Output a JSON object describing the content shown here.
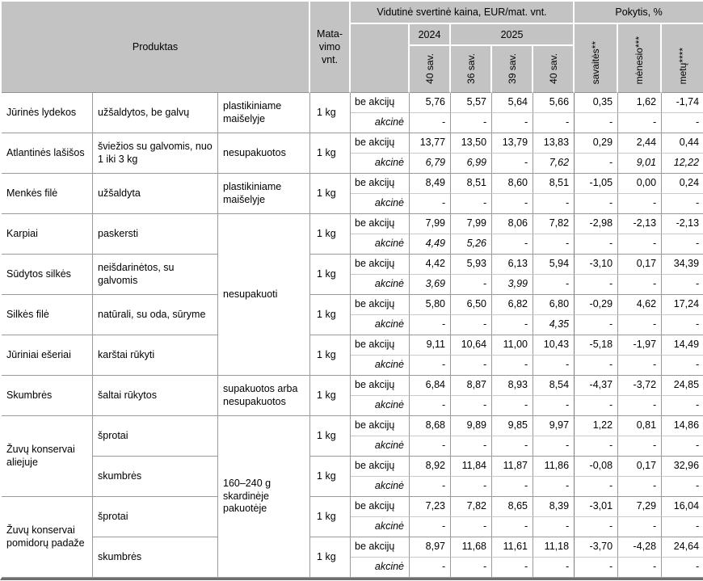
{
  "header": {
    "produktas": "Produktas",
    "matavimo": "Mata-\nvimo\nvnt.",
    "kaina": "Vidutinė svertinė kaina, EUR/mat. vnt.",
    "pokytis": "Pokytis, %",
    "year_2024": "2024",
    "year_2025": "2025",
    "weeks": [
      "40 sav.",
      "36 sav.",
      "39 sav.",
      "40 sav."
    ],
    "pokytis_labels": [
      "savaitės**",
      "mėnesio***",
      "metų****"
    ]
  },
  "row_labels": {
    "regular": "be akcijų",
    "promo": "akcinė"
  },
  "colors": {
    "header_bg": "#c3c3c3",
    "body_bg": "#ffffff",
    "grid_border": "#9a9a9a",
    "light_border": "#c9c9c9",
    "bottom_bar": "#6e6e6e"
  },
  "groups": [
    {
      "name": "Jūrinės lydekos",
      "name_groups": 1,
      "desc": "užšaldytos, be galvų",
      "pack": "plastikiniame maišelyje",
      "pack_groups": 1,
      "unit": "1 kg",
      "be": [
        "5,76",
        "5,57",
        "5,64",
        "5,66",
        "0,35",
        "1,62",
        "-1,74"
      ],
      "akc": [
        "-",
        "-",
        "-",
        "-",
        "-",
        "-",
        "-"
      ]
    },
    {
      "name": "Atlantinės lašišos",
      "name_groups": 1,
      "desc": "šviežios su galvomis, nuo 1 iki 3 kg",
      "pack": "nesupakuotos",
      "pack_groups": 1,
      "unit": "1 kg",
      "be": [
        "13,77",
        "13,50",
        "13,79",
        "13,83",
        "0,29",
        "2,44",
        "0,44"
      ],
      "akc": [
        "6,79",
        "6,99",
        "-",
        "7,62",
        "-",
        "9,01",
        "12,22"
      ]
    },
    {
      "name": "Menkės filė",
      "name_groups": 1,
      "desc": "užšaldyta",
      "pack": "plastikiniame maišelyje",
      "pack_groups": 1,
      "unit": "1 kg",
      "be": [
        "8,49",
        "8,51",
        "8,60",
        "8,51",
        "-1,05",
        "0,00",
        "0,24"
      ],
      "akc": [
        "-",
        "-",
        "-",
        "-",
        "-",
        "-",
        "-"
      ]
    },
    {
      "name": "Karpiai",
      "name_groups": 1,
      "desc": "paskersti",
      "pack": "nesupakuoti",
      "pack_groups": 4,
      "unit": "1 kg",
      "be": [
        "7,99",
        "7,99",
        "8,06",
        "7,82",
        "-2,98",
        "-2,13",
        "-2,13"
      ],
      "akc": [
        "4,49",
        "5,26",
        "-",
        "-",
        "-",
        "-",
        "-"
      ]
    },
    {
      "name": "Sūdytos silkės",
      "name_groups": 1,
      "desc": "neišdarinėtos, su galvomis",
      "pack": null,
      "pack_groups": 0,
      "unit": "1 kg",
      "be": [
        "4,42",
        "5,93",
        "6,13",
        "5,94",
        "-3,10",
        "0,17",
        "34,39"
      ],
      "akc": [
        "3,69",
        "-",
        "3,99",
        "-",
        "-",
        "-",
        "-"
      ]
    },
    {
      "name": "Silkės filė",
      "name_groups": 1,
      "desc": "natūrali, su oda, sūryme",
      "pack": null,
      "pack_groups": 0,
      "unit": "1 kg",
      "be": [
        "5,80",
        "6,50",
        "6,82",
        "6,80",
        "-0,29",
        "4,62",
        "17,24"
      ],
      "akc": [
        "-",
        "-",
        "-",
        "4,35",
        "-",
        "-",
        "-"
      ]
    },
    {
      "name": "Jūriniai ešeriai",
      "name_groups": 1,
      "desc": "karštai rūkyti",
      "pack": null,
      "pack_groups": 0,
      "unit": "1 kg",
      "be": [
        "9,11",
        "10,64",
        "11,00",
        "10,43",
        "-5,18",
        "-1,97",
        "14,49"
      ],
      "akc": [
        "-",
        "-",
        "-",
        "-",
        "-",
        "-",
        "-"
      ]
    },
    {
      "name": "Skumbrės",
      "name_groups": 1,
      "desc": "šaltai rūkytos",
      "pack": "supakuotos arba nesupakuotos",
      "pack_groups": 1,
      "unit": "1 kg",
      "be": [
        "6,84",
        "8,87",
        "8,93",
        "8,54",
        "-4,37",
        "-3,72",
        "24,85"
      ],
      "akc": [
        "-",
        "-",
        "-",
        "-",
        "-",
        "-",
        "-"
      ]
    },
    {
      "name": "Žuvų konservai aliejuje",
      "name_groups": 2,
      "desc": "šprotai",
      "pack": "160–240 g skardinėje pakuotėje",
      "pack_groups": 4,
      "unit": "1 kg",
      "be": [
        "8,68",
        "9,89",
        "9,85",
        "9,97",
        "1,22",
        "0,81",
        "14,86"
      ],
      "akc": [
        "-",
        "-",
        "-",
        "-",
        "-",
        "-",
        "-"
      ]
    },
    {
      "name": null,
      "name_groups": 0,
      "desc": "skumbrės",
      "pack": null,
      "pack_groups": 0,
      "unit": "1 kg",
      "be": [
        "8,92",
        "11,84",
        "11,87",
        "11,86",
        "-0,08",
        "0,17",
        "32,96"
      ],
      "akc": [
        "-",
        "-",
        "-",
        "-",
        "-",
        "-",
        "-"
      ]
    },
    {
      "name": "Žuvų konservai pomidorų padaže",
      "name_groups": 2,
      "desc": "šprotai",
      "pack": null,
      "pack_groups": 0,
      "unit": "1 kg",
      "be": [
        "7,23",
        "7,82",
        "8,65",
        "8,39",
        "-3,01",
        "7,29",
        "16,04"
      ],
      "akc": [
        "-",
        "-",
        "-",
        "-",
        "-",
        "-",
        "-"
      ]
    },
    {
      "name": null,
      "name_groups": 0,
      "desc": "skumbrės",
      "pack": null,
      "pack_groups": 0,
      "unit": "1 kg",
      "be": [
        "8,97",
        "11,68",
        "11,61",
        "11,18",
        "-3,70",
        "-4,28",
        "24,64"
      ],
      "akc": [
        "-",
        "-",
        "-",
        "-",
        "-",
        "-",
        "-"
      ]
    }
  ]
}
